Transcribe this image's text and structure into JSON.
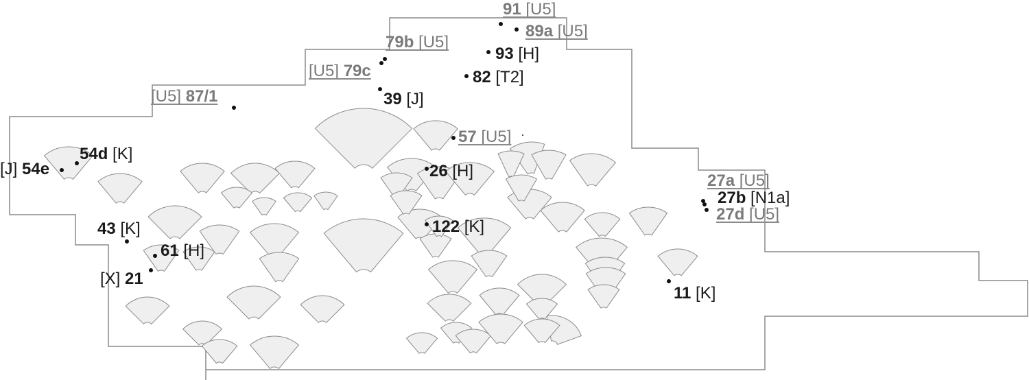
{
  "diagram": {
    "labels": [
      {
        "id": "91",
        "number": "91",
        "code": "U5",
        "order": "number-first",
        "style": "grey-underlined"
      },
      {
        "id": "89a",
        "number": "89a",
        "code": "U5",
        "order": "number-first",
        "style": "grey-underlined"
      },
      {
        "id": "79b",
        "number": "79b",
        "code": "U5",
        "order": "number-first",
        "style": "grey-underlined"
      },
      {
        "id": "79c",
        "number": "79c",
        "code": "U5",
        "order": "code-first",
        "style": "grey-underlined"
      },
      {
        "id": "87-1",
        "number": "87/1",
        "code": "U5",
        "order": "code-first",
        "style": "grey-underlined"
      },
      {
        "id": "93",
        "number": "93",
        "code": "H",
        "order": "number-first",
        "style": "black"
      },
      {
        "id": "82",
        "number": "82",
        "code": "T2",
        "order": "number-first",
        "style": "black"
      },
      {
        "id": "39",
        "number": "39",
        "code": "J",
        "order": "number-first",
        "style": "black"
      },
      {
        "id": "57",
        "number": "57",
        "code": "U5",
        "order": "number-first",
        "style": "grey-underlined"
      },
      {
        "id": "26",
        "number": "26",
        "code": "H",
        "order": "number-first",
        "style": "black"
      },
      {
        "id": "54d",
        "number": "54d",
        "code": "K",
        "order": "number-first",
        "style": "black"
      },
      {
        "id": "54e",
        "number": "54e",
        "code": "J",
        "order": "code-first",
        "style": "black"
      },
      {
        "id": "27a",
        "number": "27a",
        "code": "U5",
        "order": "number-first",
        "style": "grey-underlined"
      },
      {
        "id": "27b",
        "number": "27b",
        "code": "N1a",
        "order": "number-first",
        "style": "black"
      },
      {
        "id": "27d",
        "number": "27d",
        "code": "U5",
        "order": "number-first",
        "style": "grey-underlined"
      },
      {
        "id": "43",
        "number": "43",
        "code": "K",
        "order": "number-first",
        "style": "black"
      },
      {
        "id": "122",
        "number": "122",
        "code": "K",
        "order": "number-first",
        "style": "black"
      },
      {
        "id": "61",
        "number": "61",
        "code": "H",
        "order": "number-first",
        "style": "black"
      },
      {
        "id": "21",
        "number": "21",
        "code": "X",
        "order": "code-first",
        "style": "black"
      },
      {
        "id": "11",
        "number": "11",
        "code": "K",
        "order": "number-first",
        "style": "black"
      }
    ],
    "colors": {
      "fan_fill": "#efefef",
      "fan_stroke": "#8a8a8a",
      "outline": "#8a8a8a",
      "text_black": "#1a1a1a",
      "text_grey": "#7a7a7a",
      "point": "#111111"
    }
  }
}
